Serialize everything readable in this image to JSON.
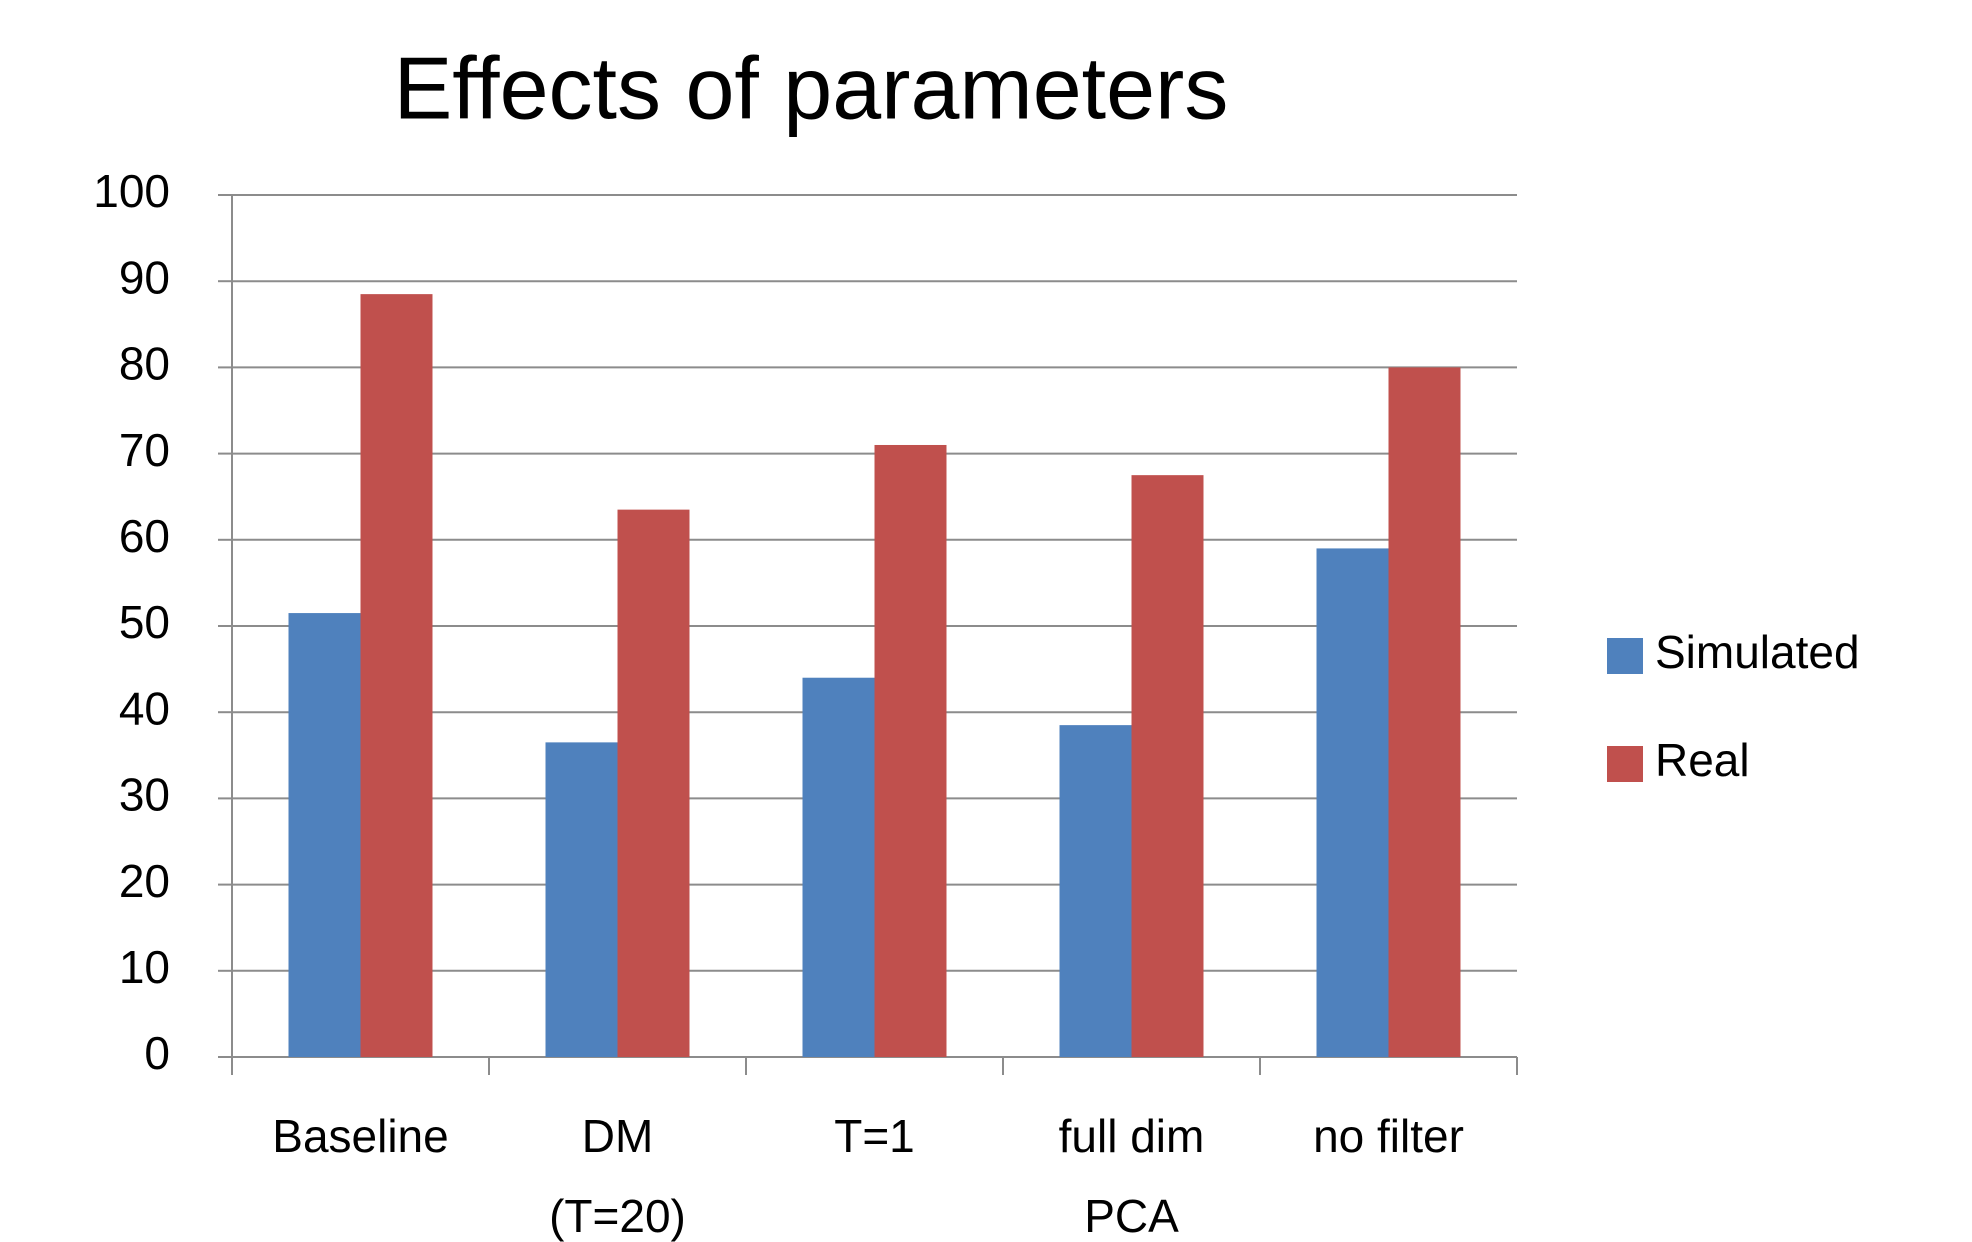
{
  "chart_data": {
    "type": "bar",
    "title": "Effects of parameters",
    "categories": [
      [
        "Baseline"
      ],
      [
        "DM",
        "(T=20)"
      ],
      [
        "T=1"
      ],
      [
        "full dim",
        "PCA"
      ],
      [
        "no filter"
      ]
    ],
    "series": [
      {
        "name": "Simulated",
        "color": "#4f81bd",
        "values": [
          51.5,
          36.5,
          44,
          38.5,
          59
        ]
      },
      {
        "name": "Real",
        "color": "#c0504d",
        "values": [
          88.5,
          63.5,
          71,
          67.5,
          80
        ]
      }
    ],
    "ylim": [
      0,
      100
    ],
    "yticks": [
      0,
      10,
      20,
      30,
      40,
      50,
      60,
      70,
      80,
      90,
      100
    ],
    "grid": true,
    "legend": "right"
  }
}
